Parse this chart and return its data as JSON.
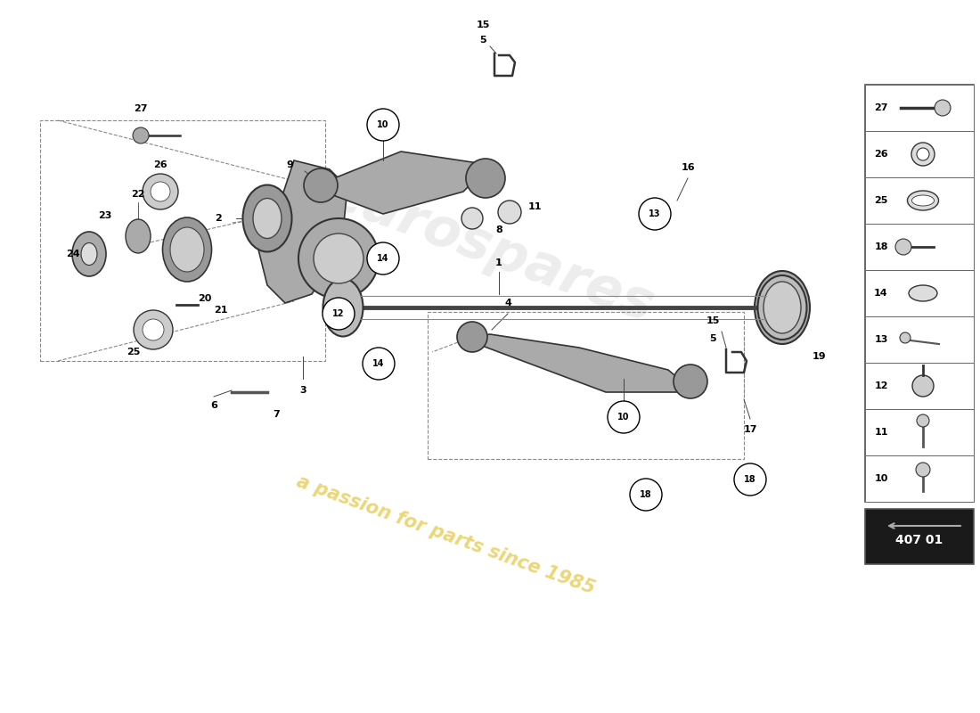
{
  "bg_color": "#ffffff",
  "title": "",
  "watermark_line1": "a passion for parts since 1985",
  "watermark_color": "#e8d060",
  "diagram_number": "407 01",
  "part_numbers_main": [
    1,
    2,
    3,
    4,
    5,
    6,
    7,
    8,
    9,
    10,
    11,
    12,
    13,
    14,
    15,
    16,
    17,
    18,
    19,
    20,
    21,
    22,
    23,
    24,
    25,
    26,
    27
  ],
  "sidebar_items": [
    {
      "num": 27,
      "y": 0
    },
    {
      "num": 26,
      "y": 1
    },
    {
      "num": 25,
      "y": 2
    },
    {
      "num": 18,
      "y": 3
    },
    {
      "num": 14,
      "y": 4
    },
    {
      "num": 13,
      "y": 5
    },
    {
      "num": 12,
      "y": 6
    },
    {
      "num": 11,
      "y": 7
    },
    {
      "num": 10,
      "y": 8
    }
  ],
  "label_color": "#000000",
  "line_color": "#1a1a1a",
  "circle_color": "#ffffff",
  "circle_edge": "#000000",
  "dashed_line_color": "#888888",
  "component_color": "#333333"
}
